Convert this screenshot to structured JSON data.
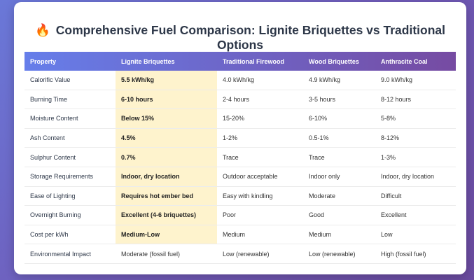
{
  "title": "Comprehensive Fuel Comparison: Lignite Briquettes vs Traditional Options",
  "title_icon": "fire-icon",
  "colors": {
    "header_start": "#667eea",
    "header_end": "#764ba2",
    "highlight": "#fef3cd"
  },
  "columns": [
    "Property",
    "Lignite Briquettes",
    "Traditional Firewood",
    "Wood Briquettes",
    "Anthracite Coal"
  ],
  "rows": [
    {
      "cells": [
        "Calorific Value",
        "5.5 kWh/kg",
        "4.0 kWh/kg",
        "4.9 kWh/kg",
        "9.0 kWh/kg"
      ],
      "highlight": true
    },
    {
      "cells": [
        "Burning Time",
        "6-10 hours",
        "2-4 hours",
        "3-5 hours",
        "8-12 hours"
      ],
      "highlight": true
    },
    {
      "cells": [
        "Moisture Content",
        "Below 15%",
        "15-20%",
        "6-10%",
        "5-8%"
      ],
      "highlight": true
    },
    {
      "cells": [
        "Ash Content",
        "4.5%",
        "1-2%",
        "0.5-1%",
        "8-12%"
      ],
      "highlight": true
    },
    {
      "cells": [
        "Sulphur Content",
        "0.7%",
        "Trace",
        "Trace",
        "1-3%"
      ],
      "highlight": true
    },
    {
      "cells": [
        "Storage Requirements",
        "Indoor, dry location",
        "Outdoor acceptable",
        "Indoor only",
        "Indoor, dry location"
      ],
      "highlight": true
    },
    {
      "cells": [
        "Ease of Lighting",
        "Requires hot ember bed",
        "Easy with kindling",
        "Moderate",
        "Difficult"
      ],
      "highlight": true
    },
    {
      "cells": [
        "Overnight Burning",
        "Excellent (4-6 briquettes)",
        "Poor",
        "Good",
        "Excellent"
      ],
      "highlight": true
    },
    {
      "cells": [
        "Cost per kWh",
        "Medium-Low",
        "Medium",
        "Medium",
        "Low"
      ],
      "highlight": true
    },
    {
      "cells": [
        "Environmental Impact",
        "Moderate (fossil fuel)",
        "Low (renewable)",
        "Low (renewable)",
        "High (fossil fuel)"
      ],
      "highlight": false
    }
  ]
}
